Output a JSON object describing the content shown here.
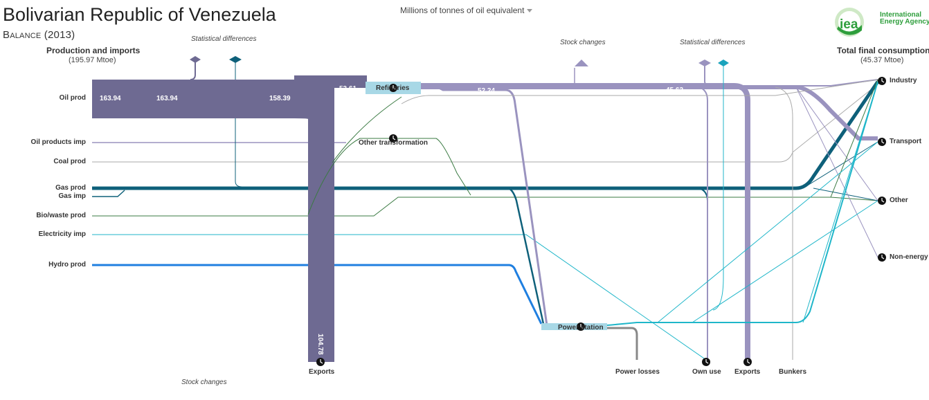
{
  "header": {
    "title": "Bolivarian Republic of Venezuela",
    "subtitle": "Balance (2013)",
    "unit_selector": "Millions of tonnes of oil equivalent"
  },
  "logo": {
    "mark": "iea",
    "line1": "International",
    "line2": "Energy Agency"
  },
  "left_column": {
    "heading": "Production and imports",
    "total": "(195.97 Mtoe)"
  },
  "right_column": {
    "heading": "Total final consumption",
    "total": "(45.37 Mtoe)"
  },
  "sources": {
    "oil_prod": "Oil prod",
    "oil_products_imp": "Oil products imp",
    "coal_prod": "Coal prod",
    "gas_prod": "Gas prod",
    "gas_imp": "Gas imp",
    "biowaste_prod": "Bio/waste prod",
    "electricity_imp": "Electricity imp",
    "hydro_prod": "Hydro prod"
  },
  "annotations": {
    "stat_diff_left": "Statistical differences",
    "stock_changes_top": "Stock  changes",
    "stat_diff_right": "Statistical differences",
    "stock_changes_bottom": "Stock changes"
  },
  "transformations": {
    "refineries": "Refineries",
    "other_transformation": "Other transformation",
    "power_station": "Power station"
  },
  "sinks": {
    "exports_left": "Exports",
    "power_losses": "Power losses",
    "own_use": "Own use",
    "exports_right": "Exports",
    "bunkers": "Bunkers"
  },
  "final_use": {
    "industry": "Industry",
    "transport": "Transport",
    "other": "Other",
    "non_energy": "Non-energy"
  },
  "flow_values": {
    "v1": "163.94",
    "v2": "163.94",
    "v3": "158.39",
    "v4": "53.61",
    "v5": "52.24",
    "v6": "45.62",
    "v7": "104.78"
  },
  "colors": {
    "oil": "#6e6a92",
    "oil_products": "#9a93bf",
    "gas": "#0e607a",
    "biowaste": "#3a7a42",
    "electricity": "#1fb6c9",
    "hydro": "#1f7fe0",
    "coal": "#9a9a9a",
    "refinery_box": "#a8d8e6",
    "stat_diff_teal": "#1aa3bc"
  }
}
